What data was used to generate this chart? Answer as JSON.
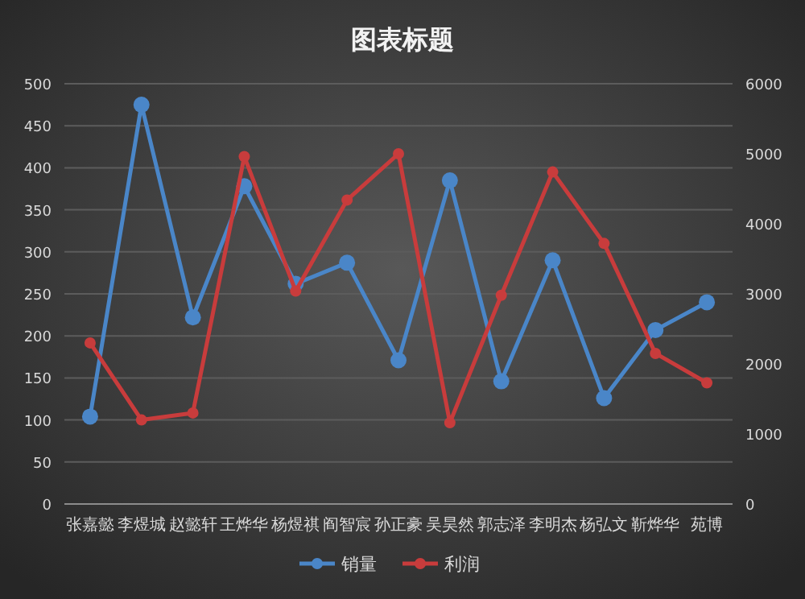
{
  "chart_data": {
    "type": "line",
    "title": "图表标题",
    "categories": [
      "张嘉懿",
      "李煜城",
      "赵懿轩",
      "王烨华",
      "杨煜祺",
      "阎智宸",
      "孙正豪",
      "吴昊然",
      "郭志泽",
      "李明杰",
      "杨弘文",
      "靳烨华",
      "苑博"
    ],
    "series": [
      {
        "name": "销量",
        "color": "#4a86c8",
        "values": [
          104,
          475,
          222,
          378,
          262,
          287,
          171,
          385,
          146,
          290,
          126,
          207,
          240
        ]
      },
      {
        "name": "利润",
        "color": "#c83c3c",
        "axis": "y2",
        "values": [
          2300,
          1200,
          1300,
          4960,
          3040,
          4340,
          5000,
          1160,
          2980,
          4740,
          3720,
          2150,
          1730
        ]
      }
    ],
    "ylim": [
      0,
      500
    ],
    "yticks": [
      0,
      50,
      100,
      150,
      200,
      250,
      300,
      350,
      400,
      450,
      500
    ],
    "y2lim": [
      0,
      6000
    ],
    "y2ticks": [
      0,
      1000,
      2000,
      3000,
      4000,
      5000,
      6000
    ],
    "grid": "y",
    "legend": "bottom",
    "marker": "circle",
    "line_style": "solid"
  }
}
